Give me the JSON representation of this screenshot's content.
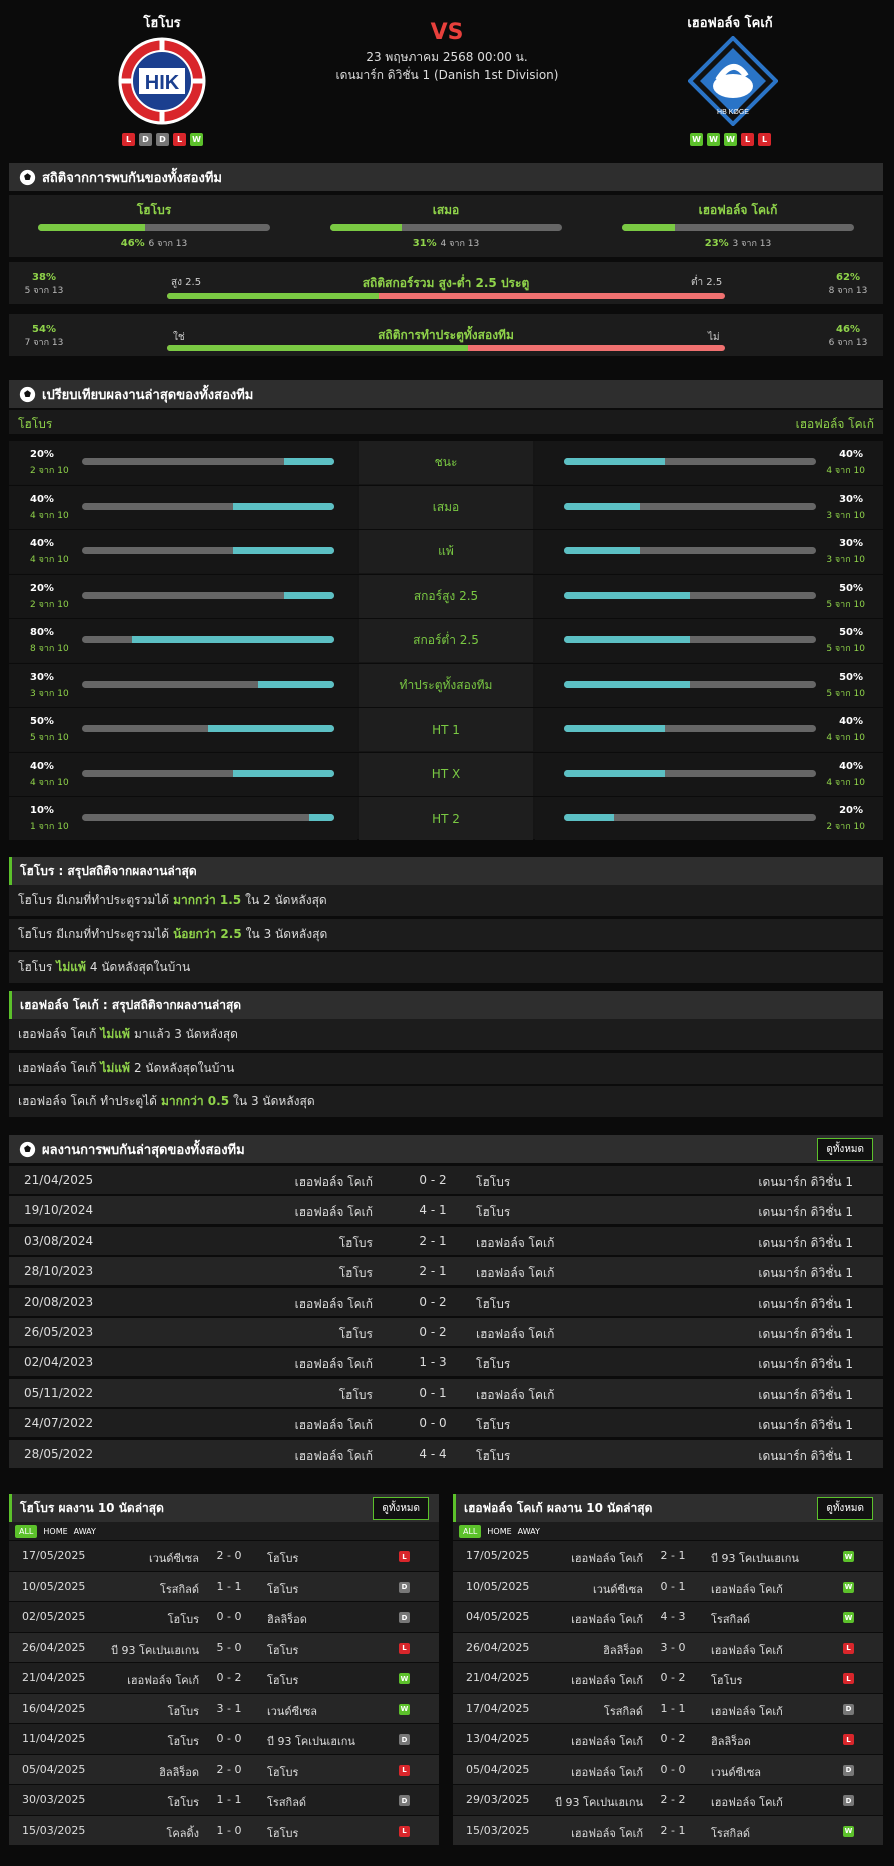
{
  "header": {
    "home_team": "โฮโบร",
    "away_team": "เฮอฟอล์จ โคเก้",
    "vs": "VS",
    "date": "23 พฤษภาคม 2568 00:00 น.",
    "league": "เดนมาร์ก ดิวิชั่น 1 (Danish 1st Division)",
    "home_form": [
      "L",
      "D",
      "D",
      "L",
      "W"
    ],
    "away_form": [
      "W",
      "W",
      "W",
      "L",
      "L"
    ],
    "home_logo_text": "HIK",
    "away_logo_text": "HB KØGE"
  },
  "h2h": {
    "title": "สถิติจากการพบกันของทั้งสองทีม",
    "cols": [
      {
        "label": "โฮโบร",
        "pct": "46%",
        "sub": "6 จาก 13",
        "value": 0.46
      },
      {
        "label": "เสมอ",
        "pct": "31%",
        "sub": "4 จาก 13",
        "value": 0.31
      },
      {
        "label": "เฮอฟอล์จ โคเก้",
        "pct": "23%",
        "sub": "3 จาก 13",
        "value": 0.23
      }
    ],
    "ou": {
      "title": "สถิติสกอร์รวม สูง-ต่ำ 2.5 ประตู",
      "left_label": "สูง 2.5",
      "right_label": "ต่ำ 2.5",
      "left_pct": "38%",
      "left_sub": "5 จาก 13",
      "right_pct": "62%",
      "right_sub": "8 จาก 13",
      "value": 0.38
    },
    "btts": {
      "title": "สถิติการทำประตูทั้งสองทีม",
      "left_label": "ใช่",
      "right_label": "ไม่",
      "left_pct": "54%",
      "left_sub": "7 จาก 13",
      "right_pct": "46%",
      "right_sub": "6 จาก 13",
      "value": 0.54
    }
  },
  "compare": {
    "title": "เปรียบเทียบผลงานล่าสุดของทั้งสองทีม",
    "home": "โฮโบร",
    "away": "เฮอฟอล์จ โคเก้",
    "rows": [
      {
        "label": "ชนะ",
        "hp": "20%",
        "hs": "2 จาก 10",
        "hv": 0.2,
        "ap": "40%",
        "as": "4 จาก 10",
        "av": 0.4
      },
      {
        "label": "เสมอ",
        "hp": "40%",
        "hs": "4 จาก 10",
        "hv": 0.4,
        "ap": "30%",
        "as": "3 จาก 10",
        "av": 0.3
      },
      {
        "label": "แพ้",
        "hp": "40%",
        "hs": "4 จาก 10",
        "hv": 0.4,
        "ap": "30%",
        "as": "3 จาก 10",
        "av": 0.3
      },
      {
        "label": "สกอร์สูง 2.5",
        "hp": "20%",
        "hs": "2 จาก 10",
        "hv": 0.2,
        "ap": "50%",
        "as": "5 จาก 10",
        "av": 0.5
      },
      {
        "label": "สกอร์ต่ำ 2.5",
        "hp": "80%",
        "hs": "8 จาก 10",
        "hv": 0.8,
        "ap": "50%",
        "as": "5 จาก 10",
        "av": 0.5
      },
      {
        "label": "ทำประตูทั้งสองทีม",
        "hp": "30%",
        "hs": "3 จาก 10",
        "hv": 0.3,
        "ap": "50%",
        "as": "5 จาก 10",
        "av": 0.5
      },
      {
        "label": "HT 1",
        "hp": "50%",
        "hs": "5 จาก 10",
        "hv": 0.5,
        "ap": "40%",
        "as": "4 จาก 10",
        "av": 0.4
      },
      {
        "label": "HT X",
        "hp": "40%",
        "hs": "4 จาก 10",
        "hv": 0.4,
        "ap": "40%",
        "as": "4 จาก 10",
        "av": 0.4
      },
      {
        "label": "HT 2",
        "hp": "10%",
        "hs": "1 จาก 10",
        "hv": 0.1,
        "ap": "20%",
        "as": "2 จาก 10",
        "av": 0.2
      }
    ]
  },
  "home_summary": {
    "title": "โฮโบร : สรุปสถิติจากผลงานล่าสุด",
    "lines": [
      [
        "โฮโบร มีเกมที่ทำประตูรวมได้",
        "มากกว่า 1.5",
        "ใน 2 นัดหลังสุด"
      ],
      [
        "โฮโบร มีเกมที่ทำประตูรวมได้",
        "น้อยกว่า 2.5",
        "ใน 3 นัดหลังสุด"
      ],
      [
        "โฮโบร",
        "ไม่แพ้",
        "4 นัดหลังสุดในบ้าน"
      ]
    ]
  },
  "away_summary": {
    "title": "เฮอฟอล์จ โคเก้ : สรุปสถิติจากผลงานล่าสุด",
    "lines": [
      [
        "เฮอฟอล์จ โคเก้",
        "ไม่แพ้",
        "มาแล้ว 3 นัดหลังสุด"
      ],
      [
        "เฮอฟอล์จ โคเก้",
        "ไม่แพ้",
        "2 นัดหลังสุดในบ้าน"
      ],
      [
        "เฮอฟอล์จ โคเก้ ทำประตูได้",
        "มากกว่า 0.5",
        "ใน 3 นัดหลังสุด"
      ]
    ]
  },
  "meetings": {
    "title": "ผลงานการพบกันล่าสุดของทั้งสองทีม",
    "button": "ดูทั้งหมด",
    "rows": [
      [
        "21/04/2025",
        "เฮอฟอล์จ โคเก้",
        "0 - 2",
        "โฮโบร",
        "เดนมาร์ก ดิวิชั่น 1"
      ],
      [
        "19/10/2024",
        "เฮอฟอล์จ โคเก้",
        "4 - 1",
        "โฮโบร",
        "เดนมาร์ก ดิวิชั่น 1"
      ],
      [
        "03/08/2024",
        "โฮโบร",
        "2 - 1",
        "เฮอฟอล์จ โคเก้",
        "เดนมาร์ก ดิวิชั่น 1"
      ],
      [
        "28/10/2023",
        "โฮโบร",
        "2 - 1",
        "เฮอฟอล์จ โคเก้",
        "เดนมาร์ก ดิวิชั่น 1"
      ],
      [
        "20/08/2023",
        "เฮอฟอล์จ โคเก้",
        "0 - 2",
        "โฮโบร",
        "เดนมาร์ก ดิวิชั่น 1"
      ],
      [
        "26/05/2023",
        "โฮโบร",
        "0 - 2",
        "เฮอฟอล์จ โคเก้",
        "เดนมาร์ก ดิวิชั่น 1"
      ],
      [
        "02/04/2023",
        "เฮอฟอล์จ โคเก้",
        "1 - 3",
        "โฮโบร",
        "เดนมาร์ก ดิวิชั่น 1"
      ],
      [
        "05/11/2022",
        "โฮโบร",
        "0 - 1",
        "เฮอฟอล์จ โคเก้",
        "เดนมาร์ก ดิวิชั่น 1"
      ],
      [
        "24/07/2022",
        "เฮอฟอล์จ โคเก้",
        "0 - 0",
        "โฮโบร",
        "เดนมาร์ก ดิวิชั่น 1"
      ],
      [
        "28/05/2022",
        "เฮอฟอล์จ โคเก้",
        "4 - 4",
        "โฮโบร",
        "เดนมาร์ก ดิวิชั่น 1"
      ]
    ]
  },
  "home_last10": {
    "title": "โฮโบร ผลงาน 10 นัดล่าสุด",
    "button": "ดูทั้งหมด",
    "tabs": [
      "ALL",
      "HOME",
      "AWAY"
    ],
    "rows": [
      [
        "17/05/2025",
        "เวนด์ซีเซล",
        "2 - 0",
        "โฮโบร",
        "L"
      ],
      [
        "10/05/2025",
        "โรสกิลด์",
        "1 - 1",
        "โฮโบร",
        "D"
      ],
      [
        "02/05/2025",
        "โฮโบร",
        "0 - 0",
        "ฮิลลิร็อด",
        "D"
      ],
      [
        "26/04/2025",
        "บี 93 โคเปนเฮเกน",
        "5 - 0",
        "โฮโบร",
        "L"
      ],
      [
        "21/04/2025",
        "เฮอฟอล์จ โคเก้",
        "0 - 2",
        "โฮโบร",
        "W"
      ],
      [
        "16/04/2025",
        "โฮโบร",
        "3 - 1",
        "เวนด์ซีเซล",
        "W"
      ],
      [
        "11/04/2025",
        "โฮโบร",
        "0 - 0",
        "บี 93 โคเปนเฮเกน",
        "D"
      ],
      [
        "05/04/2025",
        "ฮิลลิร็อด",
        "2 - 0",
        "โฮโบร",
        "L"
      ],
      [
        "30/03/2025",
        "โฮโบร",
        "1 - 1",
        "โรสกิลด์",
        "D"
      ],
      [
        "15/03/2025",
        "โคลดิ้ง",
        "1 - 0",
        "โฮโบร",
        "L"
      ]
    ]
  },
  "away_last10": {
    "title": "เฮอฟอล์จ โคเก้ ผลงาน 10 นัดล่าสุด",
    "button": "ดูทั้งหมด",
    "tabs": [
      "ALL",
      "HOME",
      "AWAY"
    ],
    "rows": [
      [
        "17/05/2025",
        "เฮอฟอล์จ โคเก้",
        "2 - 1",
        "บี 93 โคเปนเฮเกน",
        "W"
      ],
      [
        "10/05/2025",
        "เวนด์ซีเซล",
        "0 - 1",
        "เฮอฟอล์จ โคเก้",
        "W"
      ],
      [
        "04/05/2025",
        "เฮอฟอล์จ โคเก้",
        "4 - 3",
        "โรสกิลด์",
        "W"
      ],
      [
        "26/04/2025",
        "ฮิลลิร็อด",
        "3 - 0",
        "เฮอฟอล์จ โคเก้",
        "L"
      ],
      [
        "21/04/2025",
        "เฮอฟอล์จ โคเก้",
        "0 - 2",
        "โฮโบร",
        "L"
      ],
      [
        "17/04/2025",
        "โรสกิลด์",
        "1 - 1",
        "เฮอฟอล์จ โคเก้",
        "D"
      ],
      [
        "13/04/2025",
        "เฮอฟอล์จ โคเก้",
        "0 - 2",
        "ฮิลลิร็อด",
        "L"
      ],
      [
        "05/04/2025",
        "เฮอฟอล์จ โคเก้",
        "0 - 0",
        "เวนด์ซีเซล",
        "D"
      ],
      [
        "29/03/2025",
        "บี 93 โคเปนเฮเกน",
        "2 - 2",
        "เฮอฟอล์จ โคเก้",
        "D"
      ],
      [
        "15/03/2025",
        "เฮอฟอล์จ โคเก้",
        "2 - 1",
        "โรสกิลด์",
        "W"
      ]
    ]
  }
}
